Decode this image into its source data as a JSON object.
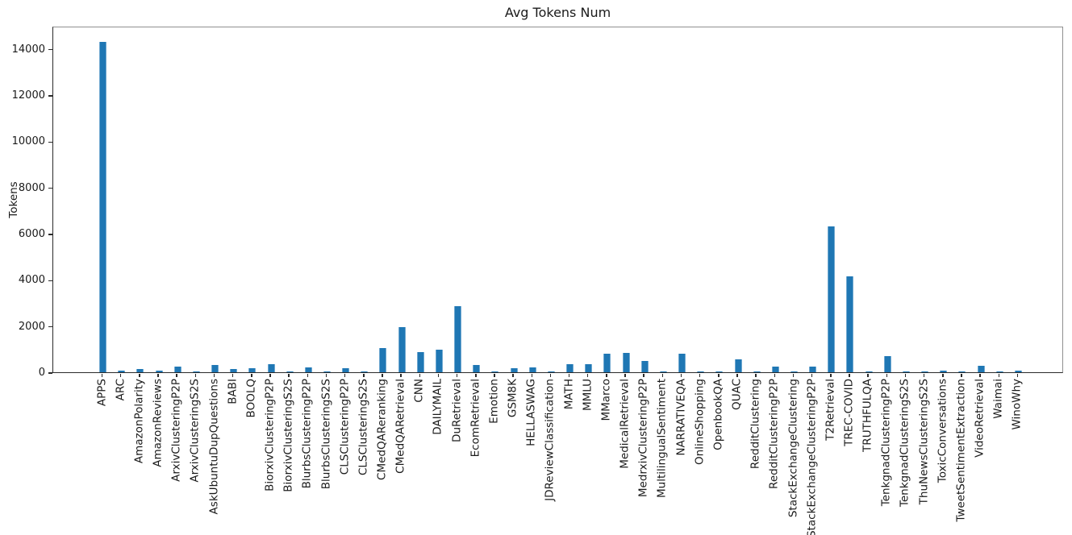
{
  "figure": {
    "background_color": "#ffffff",
    "axis_color": "#2a2a2a"
  },
  "chart_data": {
    "type": "bar",
    "title": "Avg Tokens Num",
    "xlabel": "",
    "ylabel": "Tokens",
    "ylim": [
      0,
      15000
    ],
    "yticks": [
      0,
      2000,
      4000,
      6000,
      8000,
      10000,
      12000,
      14000
    ],
    "grid": false,
    "legend": "none",
    "bar_color": "#1f77b4",
    "x_label_rotation_deg": 90,
    "categories": [
      "APPS",
      "ARC",
      "AmazonPolarity",
      "AmazonReviews",
      "ArxivClusteringP2P",
      "ArxivClusteringS2S",
      "AskUbuntuDupQuestions",
      "BABI",
      "BOOLQ",
      "BiorxivClusteringP2P",
      "BiorxivClusteringS2S",
      "BlurbsClusteringP2P",
      "BlurbsClusteringS2S",
      "CLSClusteringP2P",
      "CLSClusteringS2S",
      "CMedQAReranking",
      "CMedQARetrieval",
      "CNN",
      "DAILYMAIL",
      "DuRetrieval",
      "EcomRetrieval",
      "Emotion",
      "GSM8K",
      "HELLASWAG",
      "JDReviewClassification",
      "MATH",
      "MMLU",
      "MMarco",
      "MedicalRetrieval",
      "MedrxivClusteringP2P",
      "MultilingualSentiment",
      "NARRATIVEQA",
      "OnlineShopping",
      "OpenbookQA",
      "QUAC",
      "RedditClustering",
      "RedditClusteringP2P",
      "StackExchangeClustering",
      "StackExchangeClusteringP2P",
      "T2Retrieval",
      "TREC-COVID",
      "TRUTHFULQA",
      "TenkgnadClusteringP2P",
      "TenkgnadClusteringS2S",
      "ThuNewsClusteringS2S",
      "ToxicConversations",
      "TweetSentimentExtraction",
      "VideoRetrieval",
      "Waimai",
      "WinoWhy"
    ],
    "values": [
      14300,
      80,
      130,
      80,
      250,
      45,
      325,
      150,
      175,
      350,
      35,
      220,
      20,
      160,
      20,
      1060,
      1970,
      870,
      970,
      2850,
      315,
      25,
      165,
      200,
      35,
      340,
      360,
      800,
      840,
      490,
      30,
      800,
      30,
      25,
      550,
      25,
      250,
      45,
      230,
      6330,
      4160,
      50,
      710,
      15,
      15,
      80,
      30,
      290,
      25,
      60
    ]
  }
}
